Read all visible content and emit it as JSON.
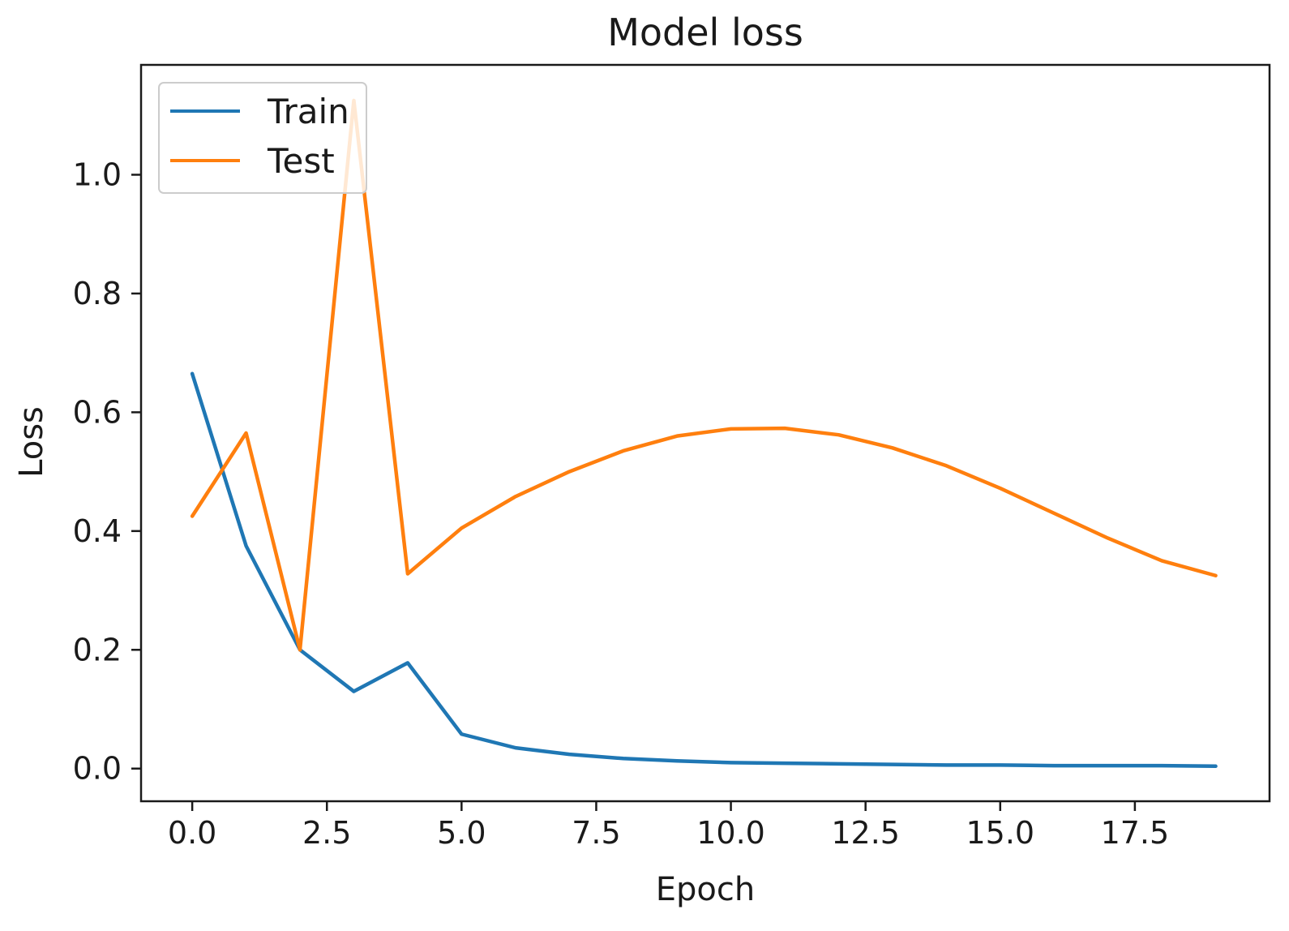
{
  "chart_data": {
    "type": "line",
    "title": "Model loss",
    "xlabel": "Epoch",
    "ylabel": "Loss",
    "xlim": [
      -0.95,
      20.0
    ],
    "ylim": [
      -0.055,
      1.185
    ],
    "xticks": [
      0,
      2.5,
      5,
      7.5,
      10,
      12.5,
      15,
      17.5
    ],
    "xtick_labels": [
      "0.0",
      "2.5",
      "5.0",
      "7.5",
      "10.0",
      "12.5",
      "15.0",
      "17.5"
    ],
    "yticks": [
      0,
      0.2,
      0.4,
      0.6,
      0.8,
      1.0
    ],
    "ytick_labels": [
      "0.0",
      "0.2",
      "0.4",
      "0.6",
      "0.8",
      "1.0"
    ],
    "legend_position": "top-left",
    "grid": false,
    "x": [
      0,
      1,
      2,
      3,
      4,
      5,
      6,
      7,
      8,
      9,
      10,
      11,
      12,
      13,
      14,
      15,
      16,
      17,
      18,
      19
    ],
    "series": [
      {
        "name": "Train",
        "color": "#1f77b4",
        "values": [
          0.665,
          0.375,
          0.2,
          0.13,
          0.178,
          0.058,
          0.035,
          0.024,
          0.017,
          0.013,
          0.01,
          0.009,
          0.008,
          0.007,
          0.006,
          0.006,
          0.005,
          0.005,
          0.005,
          0.004
        ]
      },
      {
        "name": "Test",
        "color": "#ff7f0e",
        "values": [
          0.425,
          0.565,
          0.2,
          1.125,
          0.328,
          0.405,
          0.458,
          0.5,
          0.535,
          0.56,
          0.572,
          0.573,
          0.562,
          0.54,
          0.51,
          0.472,
          0.43,
          0.388,
          0.35,
          0.325
        ]
      }
    ]
  }
}
